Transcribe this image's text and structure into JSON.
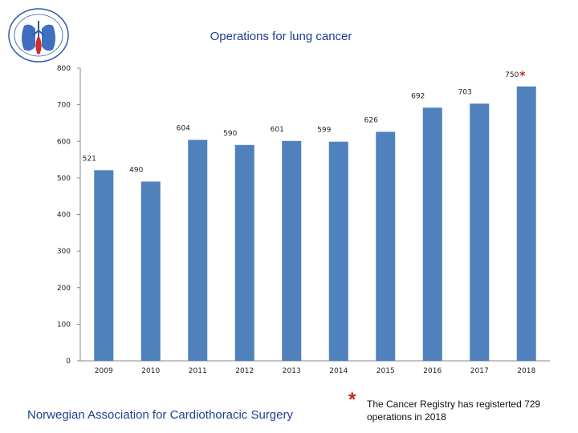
{
  "colors": {
    "bar": "#4f81bd",
    "accent": "#cc1f1f",
    "title": "#1f3f8f"
  },
  "footer": {
    "organization": "Norwegian Association for Cardiothoracic Surgery",
    "note_marker": "*",
    "note": "The Cancer Registry has registerted 729 operations in 2018"
  },
  "chart_data": {
    "type": "bar",
    "title": "Operations for lung cancer",
    "categories": [
      "2009",
      "2010",
      "2011",
      "2012",
      "2013",
      "2014",
      "2015",
      "2016",
      "2017",
      "2018"
    ],
    "values": [
      521,
      490,
      604,
      590,
      601,
      599,
      626,
      692,
      703,
      750
    ],
    "data_labels": [
      "521",
      "490",
      "604",
      "590",
      "601",
      "599",
      "626",
      "692",
      "703",
      "750"
    ],
    "annotated_category": "2018",
    "annotation_marker": "*",
    "ylim": [
      0,
      800
    ],
    "yticks": [
      0,
      100,
      200,
      300,
      400,
      500,
      600,
      700,
      800
    ],
    "xlabel": "",
    "ylabel": "",
    "legend": "none",
    "grid": false
  }
}
